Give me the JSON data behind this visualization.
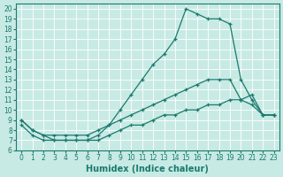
{
  "xlabel": "Humidex (Indice chaleur)",
  "xlim": [
    -0.5,
    23.5
  ],
  "ylim": [
    6,
    20.5
  ],
  "bg_color": "#c8eae4",
  "line_color": "#1a7a6e",
  "grid_color": "#b0ddd6",
  "line1_x": [
    0,
    1,
    2,
    3,
    4,
    5,
    6,
    7,
    8,
    9,
    10,
    11,
    12,
    13,
    14,
    15,
    16,
    17,
    18,
    19,
    20,
    21,
    22,
    23
  ],
  "line1_y": [
    9.0,
    8.0,
    7.5,
    7.0,
    7.0,
    7.0,
    7.0,
    7.5,
    8.5,
    10.0,
    11.5,
    13.0,
    14.5,
    15.5,
    17.0,
    20.0,
    19.5,
    19.0,
    19.0,
    18.5,
    13.0,
    11.0,
    9.5,
    9.5
  ],
  "line2_x": [
    0,
    1,
    2,
    3,
    4,
    5,
    6,
    7,
    8,
    9,
    10,
    11,
    12,
    13,
    14,
    15,
    16,
    17,
    18,
    19,
    20,
    21,
    22,
    23
  ],
  "line2_y": [
    9.0,
    8.0,
    7.5,
    7.5,
    7.5,
    7.5,
    7.5,
    8.0,
    8.5,
    9.0,
    9.5,
    10.0,
    10.5,
    11.0,
    11.5,
    12.0,
    12.5,
    13.0,
    13.0,
    13.0,
    11.0,
    10.5,
    9.5,
    9.5
  ],
  "line3_x": [
    0,
    1,
    2,
    3,
    4,
    5,
    6,
    7,
    8,
    9,
    10,
    11,
    12,
    13,
    14,
    15,
    16,
    17,
    18,
    19,
    20,
    21,
    22,
    23
  ],
  "line3_y": [
    8.5,
    7.5,
    7.0,
    7.0,
    7.0,
    7.0,
    7.0,
    7.0,
    7.5,
    8.0,
    8.5,
    8.5,
    9.0,
    9.5,
    9.5,
    10.0,
    10.0,
    10.5,
    10.5,
    11.0,
    11.0,
    11.5,
    9.5,
    9.5
  ],
  "xticks": [
    0,
    1,
    2,
    3,
    4,
    5,
    6,
    7,
    8,
    9,
    10,
    11,
    12,
    13,
    14,
    15,
    16,
    17,
    18,
    19,
    20,
    21,
    22,
    23
  ],
  "yticks": [
    6,
    7,
    8,
    9,
    10,
    11,
    12,
    13,
    14,
    15,
    16,
    17,
    18,
    19,
    20
  ],
  "tick_fontsize": 5.5,
  "label_fontsize": 7
}
